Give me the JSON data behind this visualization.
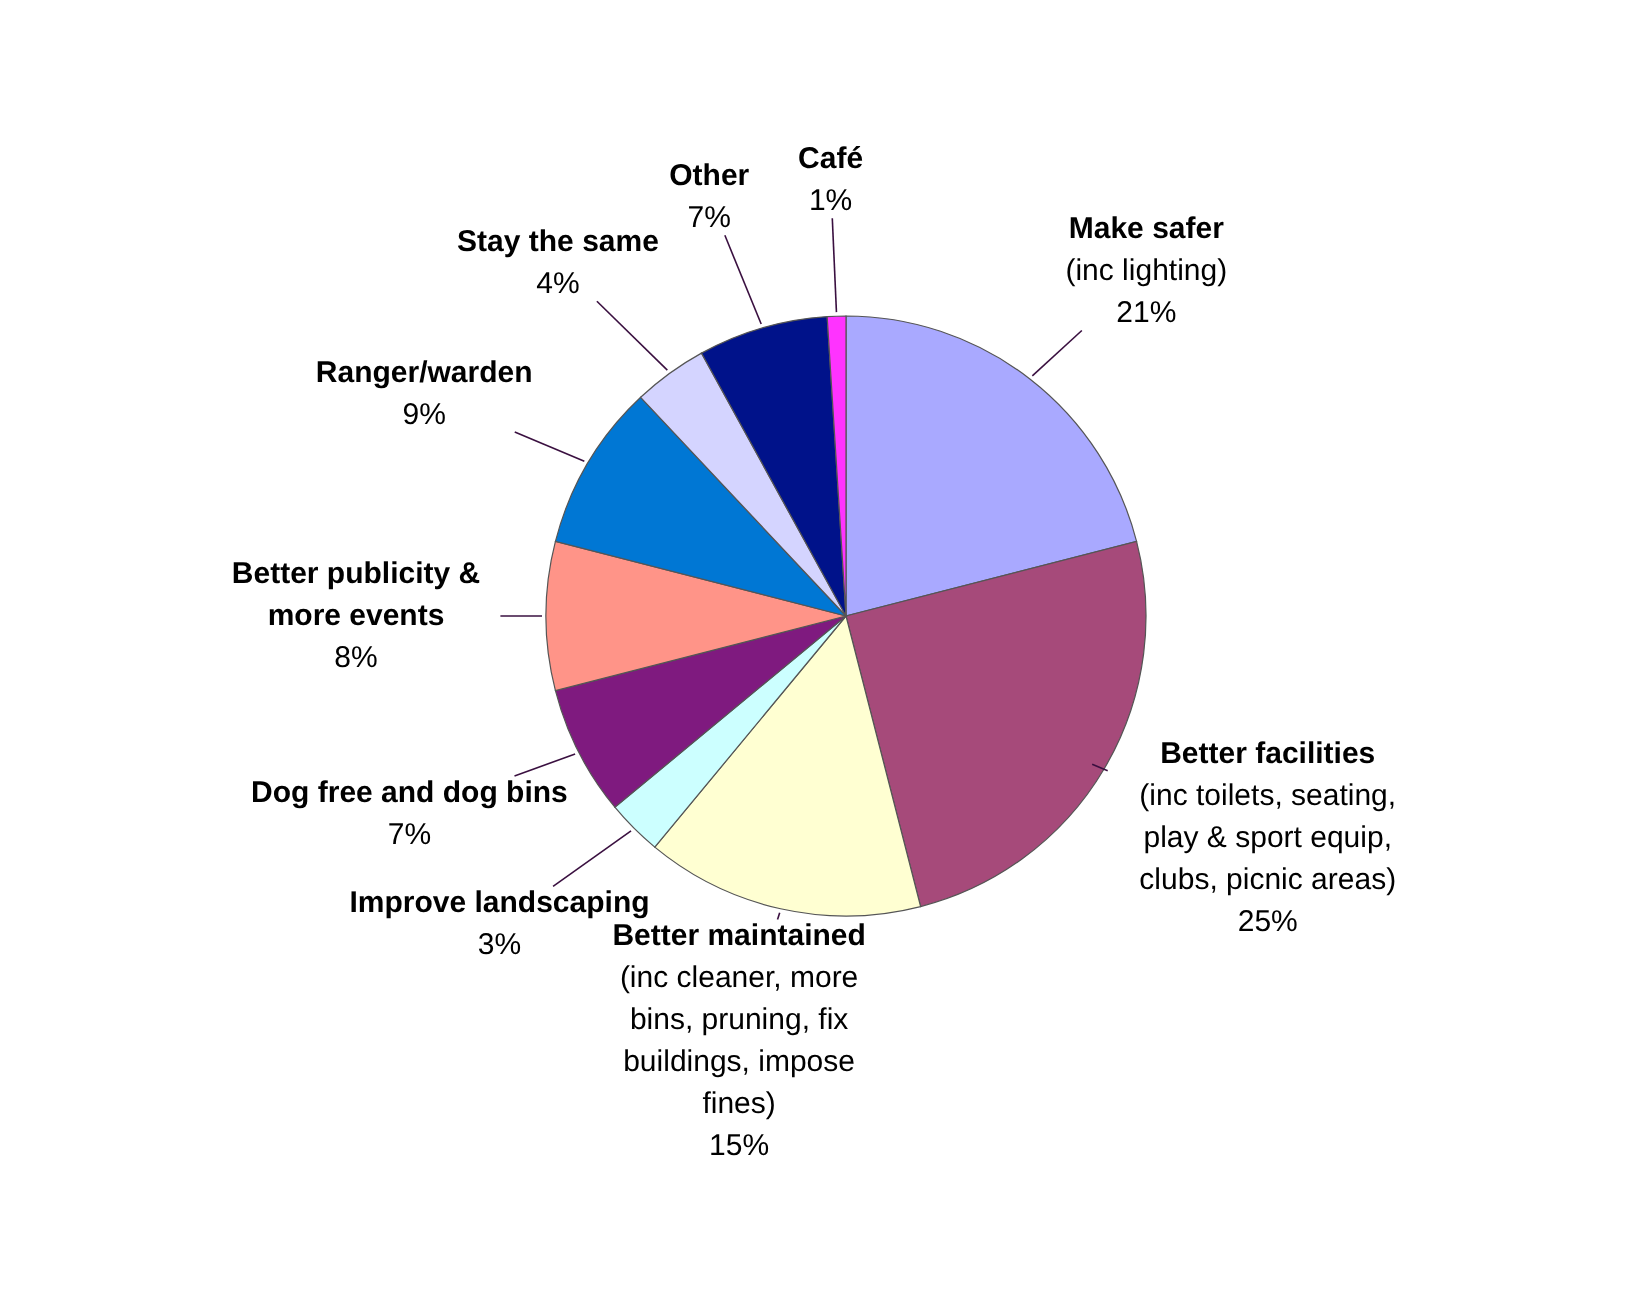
{
  "chart_data": {
    "type": "pie",
    "categories": [
      "Make safer (inc lighting)",
      "Better facilities (inc toilets, seating, play & sport equip, clubs, picnic areas)",
      "Better maintained (inc cleaner, more bins, pruning, fix buildings, impose fines)",
      "Improve landscaping",
      "Dog free and dog bins",
      "Better publicity & more events",
      "Ranger/warden",
      "Stay the same",
      "Other",
      "Café"
    ],
    "values": [
      21,
      25,
      15,
      3,
      7,
      8,
      9,
      4,
      7,
      1
    ],
    "colors": [
      "#a9a9ff",
      "#a64a7a",
      "#ffffd2",
      "#ccffff",
      "#7f1a7f",
      "#ff9488",
      "#0077d4",
      "#d4d4ff",
      "#00128a",
      "#ff33ff"
    ],
    "value_labels": [
      "21%",
      "25%",
      "15%",
      "3%",
      "7%",
      "8%",
      "9%",
      "4%",
      "7%",
      "1%"
    ],
    "legend": false
  }
}
